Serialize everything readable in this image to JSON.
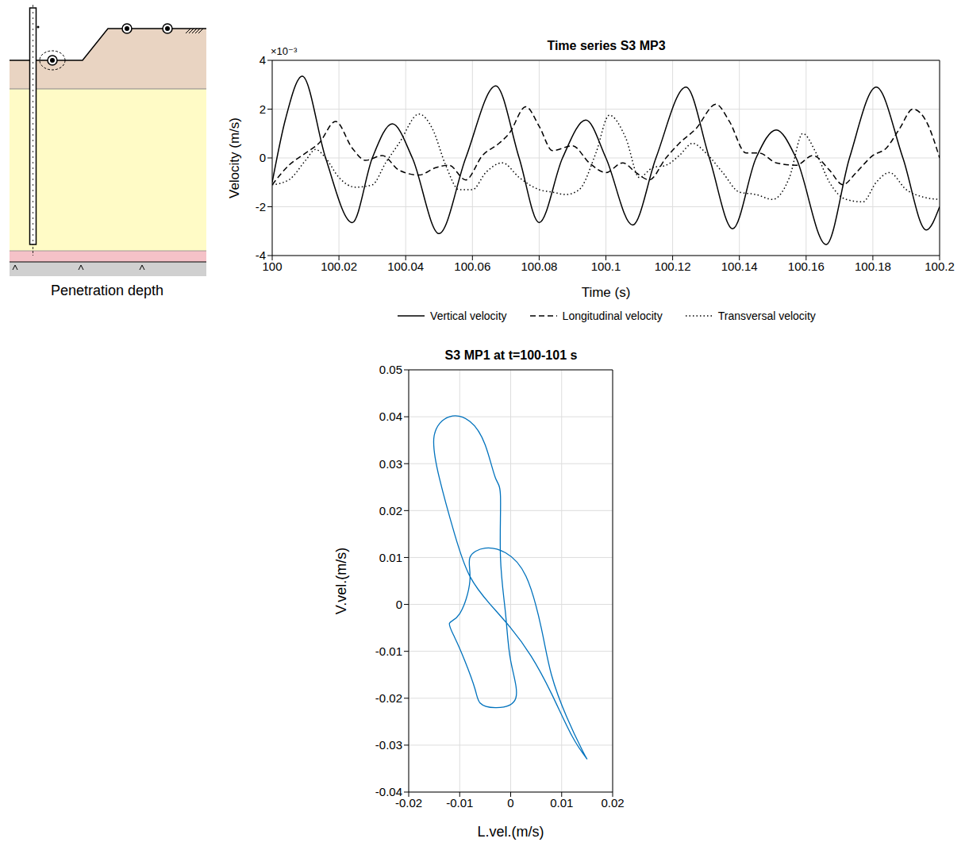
{
  "diagram": {
    "caption": "Penetration depth"
  },
  "chart_data": [
    {
      "type": "line",
      "title": "Time series S3 MP3",
      "x_label": "Time (s)",
      "y_label": "Velocity (m/s)",
      "annotations": [
        "×10⁻³"
      ],
      "xlim": [
        100,
        100.2
      ],
      "xticks": [
        100,
        100.02,
        100.04,
        100.06,
        100.08,
        100.1,
        100.12,
        100.14,
        100.16,
        100.18,
        100.2
      ],
      "ylim": [
        -4,
        4
      ],
      "yticks": [
        -4,
        -2,
        0,
        2,
        4
      ],
      "grid": true,
      "legend": "bottom",
      "series": [
        {
          "name": "Vertical velocity",
          "color": "#000000",
          "line_style": "solid",
          "x": [
            100,
            100.004,
            100.009,
            100.016,
            100.024,
            100.03,
            100.036,
            100.042,
            100.05,
            100.058,
            100.067,
            100.074,
            100.08,
            100.087,
            100.094,
            100.1,
            100.108,
            100.115,
            100.124,
            100.131,
            100.138,
            100.145,
            100.151,
            100.157,
            100.166,
            100.173,
            100.181,
            100.189,
            100.196,
            100.2
          ],
          "values": [
            -1.0,
            1.6,
            3.35,
            0,
            -2.65,
            0,
            1.4,
            0,
            -3.1,
            0,
            2.95,
            0,
            -2.65,
            0,
            1.55,
            0,
            -2.75,
            0,
            2.9,
            0,
            -2.9,
            0,
            1.15,
            0,
            -3.55,
            0,
            2.9,
            0,
            -2.95,
            -2.0
          ]
        },
        {
          "name": "Longitudinal velocity",
          "color": "#000000",
          "line_style": "dashed",
          "x": [
            100,
            100.005,
            100.01,
            100.014,
            100.019,
            100.024,
            100.028,
            100.033,
            100.038,
            100.044,
            100.049,
            100.053,
            100.058,
            100.063,
            100.068,
            100.071,
            100.076,
            100.08,
            100.084,
            100.09,
            100.095,
            100.1,
            100.105,
            100.109,
            100.113,
            100.118,
            100.122,
            100.127,
            100.133,
            100.137,
            100.142,
            100.146,
            100.151,
            100.157,
            100.162,
            100.167,
            100.171,
            100.175,
            100.18,
            100.184,
            100.188,
            100.192,
            100.196,
            100.2
          ],
          "values": [
            -1.1,
            -0.3,
            0.2,
            0.6,
            1.5,
            0.4,
            -0.1,
            0.1,
            -0.5,
            -0.7,
            -0.4,
            -0.3,
            -0.9,
            0.1,
            0.6,
            1.0,
            2.1,
            1.3,
            0.3,
            0.5,
            -0.2,
            -0.6,
            -0.2,
            -0.6,
            -0.9,
            0,
            0.6,
            1.2,
            2.2,
            1.5,
            0.2,
            0.2,
            -0.2,
            -0.3,
            0.1,
            -0.5,
            -1.1,
            -0.6,
            0.1,
            0.4,
            1.2,
            2.0,
            1.5,
            0
          ]
        },
        {
          "name": "Transversal velocity",
          "color": "#000000",
          "line_style": "dotted",
          "x": [
            100,
            100.005,
            100.01,
            100.013,
            100.016,
            100.02,
            100.025,
            100.03,
            100.034,
            100.038,
            100.044,
            100.048,
            100.052,
            100.056,
            100.06,
            100.064,
            100.069,
            100.074,
            100.08,
            100.084,
            100.088,
            100.092,
            100.097,
            100.101,
            100.106,
            100.11,
            100.114,
            100.118,
            100.122,
            100.126,
            100.13,
            100.135,
            100.14,
            100.145,
            100.15,
            100.155,
            100.159,
            100.163,
            100.167,
            100.172,
            100.177,
            100.181,
            100.185,
            100.19,
            100.195,
            100.2
          ],
          "values": [
            -1.1,
            -0.9,
            -0.1,
            0.35,
            0,
            -0.8,
            -1.2,
            -1.1,
            -0.2,
            0.6,
            1.8,
            1.2,
            -0.3,
            -1.3,
            -1.3,
            -0.6,
            -0.2,
            -0.8,
            -1.3,
            -1.4,
            -1.5,
            -1.3,
            0.2,
            1.75,
            0.8,
            -0.8,
            -0.4,
            -0.3,
            0.1,
            0.6,
            0.2,
            -0.6,
            -1.4,
            -1.5,
            -1.7,
            -0.8,
            1.0,
            0.2,
            -1.0,
            -1.7,
            -1.8,
            -1.0,
            -0.6,
            -1.3,
            -1.6,
            -1.7
          ]
        }
      ]
    },
    {
      "type": "line",
      "title": "S3 MP1 at t=100-101 s",
      "x_label": "L.vel.(m/s)",
      "y_label": "V.vel.(m/s)",
      "xlim": [
        -0.02,
        0.02
      ],
      "xticks": [
        -0.02,
        -0.01,
        0,
        0.01,
        0.02
      ],
      "ylim": [
        -0.04,
        0.05
      ],
      "yticks": [
        -0.04,
        -0.03,
        -0.02,
        -0.01,
        0,
        0.01,
        0.02,
        0.03,
        0.04,
        0.05
      ],
      "grid": true,
      "series": [
        {
          "color": "#0072bd",
          "line_style": "solid",
          "x": [
            0.015,
            0.012,
            0.008,
            0.004,
            0,
            -0.004,
            -0.008,
            -0.011,
            -0.014,
            -0.015,
            -0.012,
            -0.008,
            -0.005,
            -0.003,
            -0.002,
            -0.002,
            -0.001,
            0,
            0.001,
            -0.003,
            -0.006,
            -0.007,
            -0.009,
            -0.011,
            -0.012,
            -0.01,
            -0.008,
            -0.008,
            -0.005,
            -0.001,
            0.003,
            0.006,
            0.008,
            0.011,
            0.014,
            0.015
          ],
          "values": [
            -0.033,
            -0.028,
            -0.019,
            -0.011,
            -0.005,
            0.0,
            0.006,
            0.015,
            0.027,
            0.036,
            0.04,
            0.039,
            0.034,
            0.027,
            0.023,
            0.01,
            -0.002,
            -0.012,
            -0.02,
            -0.022,
            -0.021,
            -0.018,
            -0.012,
            -0.007,
            -0.004,
            -0.002,
            0.005,
            0.01,
            0.012,
            0.011,
            0.006,
            -0.005,
            -0.015,
            -0.024,
            -0.031,
            -0.033
          ]
        }
      ]
    }
  ]
}
